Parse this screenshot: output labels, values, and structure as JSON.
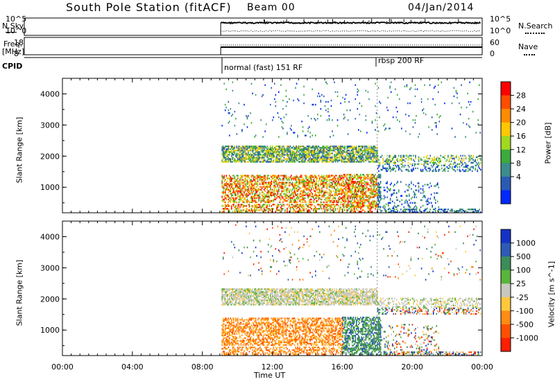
{
  "header": {
    "title": "South Pole Station (fitACF)",
    "beam": "Beam 00",
    "date": "04/Jan/2014"
  },
  "panels": {
    "nsky_label": "N.Sky",
    "nsearch_label": "N.Search",
    "nsky_ticks": [
      "10^5",
      "10^0"
    ],
    "freq_label": "Freq.",
    "freq_unit": "[MHz]",
    "freq_ticks": [
      "18",
      "8"
    ],
    "nave_label": "Nave",
    "nave_ticks": [
      "60",
      "0"
    ],
    "cpid_label": "CPID",
    "cpid_modes": [
      "normal (fast) 151 RF",
      "rbsp 200 RF"
    ]
  },
  "chart_data": [
    {
      "type": "heatmap",
      "name": "power",
      "xlabel": "",
      "ylabel": "Slant Range [km]",
      "ylim": [
        180,
        4500
      ],
      "yticks": [
        "4000",
        "3000",
        "2000",
        "1000"
      ],
      "colorbar": {
        "label": "Power [dB]",
        "ticks": [
          "28",
          "24",
          "20",
          "16",
          "12",
          "8",
          "4"
        ],
        "colors": [
          "#ff0000",
          "#ff4d00",
          "#ff8c00",
          "#ffc800",
          "#a0d820",
          "#3caa3c",
          "#3c8c8c",
          "#2a5ab4",
          "#0028ff"
        ]
      }
    },
    {
      "type": "heatmap",
      "name": "velocity",
      "xlabel": "Time UT",
      "ylabel": "Slant Range [km]",
      "ylim": [
        180,
        4500
      ],
      "yticks": [
        "4000",
        "3000",
        "2000",
        "1000"
      ],
      "xticks": [
        "00:00",
        "04:00",
        "08:00",
        "12:00",
        "16:00",
        "20:00",
        "00:00"
      ],
      "colorbar": {
        "label": "Velocity [m s^-1]",
        "ticks": [
          "1000",
          "500",
          "100",
          "25",
          "-25",
          "-100",
          "-500",
          "-1000"
        ],
        "colors": [
          "#1432c8",
          "#2d5ab4",
          "#3c8c5a",
          "#5ab43c",
          "#c8c8c0",
          "#ffc83c",
          "#ff8c14",
          "#ff5000",
          "#ff1e00"
        ]
      }
    }
  ]
}
